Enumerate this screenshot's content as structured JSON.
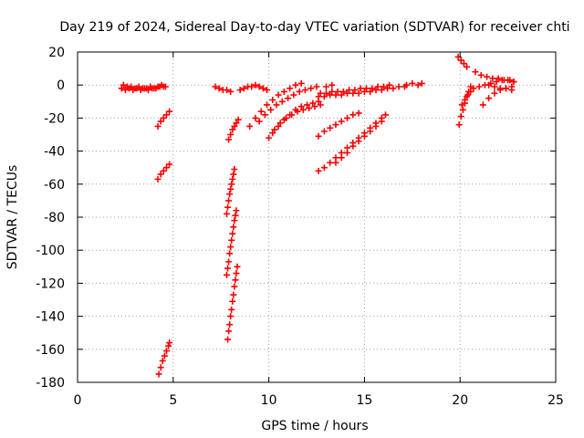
{
  "chart_data": {
    "type": "scatter",
    "title": "Day 219 of 2024, Sidereal Day-to-day VTEC variation (SDTVAR) for receiver chti",
    "xlabel": "GPS time / hours",
    "ylabel": "SDTVAR / TECUs",
    "xlim": [
      0,
      25
    ],
    "ylim": [
      -180,
      20
    ],
    "xticks": [
      0,
      5,
      10,
      15,
      20,
      25
    ],
    "yticks": [
      -180,
      -160,
      -140,
      -120,
      -100,
      -80,
      -60,
      -40,
      -20,
      0,
      20
    ],
    "grid": true,
    "marker": "plus",
    "color": "#ff0000",
    "series": [
      {
        "x": [
          2.3,
          2.5,
          2.7,
          2.9,
          3.1,
          3.3,
          3.5,
          3.7,
          3.9,
          4.1,
          4.3,
          4.5,
          4.6
        ],
        "y": [
          -2,
          -3,
          -2,
          -3,
          -2,
          -3,
          -2,
          -3,
          -2,
          -2,
          -1,
          -1,
          -1
        ]
      },
      {
        "x": [
          2.4,
          2.6,
          2.8,
          3.0,
          3.2,
          3.4,
          3.6,
          3.8,
          4.0,
          4.2,
          4.4
        ],
        "y": [
          0,
          -1,
          -1,
          -2,
          -1,
          -2,
          -2,
          -1,
          -2,
          -1,
          0
        ]
      },
      {
        "x": [
          4.2,
          4.35,
          4.5,
          4.65,
          4.8
        ],
        "y": [
          -25,
          -22,
          -20,
          -18,
          -16
        ]
      },
      {
        "x": [
          4.2,
          4.35,
          4.5,
          4.65,
          4.8
        ],
        "y": [
          -57,
          -54,
          -52,
          -50,
          -48
        ]
      },
      {
        "x": [
          4.25,
          4.35,
          4.45,
          4.55,
          4.65,
          4.75,
          4.8
        ],
        "y": [
          -175,
          -171,
          -167,
          -164,
          -161,
          -158,
          -156
        ]
      },
      {
        "x": [
          7.2,
          7.4,
          7.6,
          7.8,
          8.0
        ],
        "y": [
          -1,
          -2,
          -3,
          -3,
          -4
        ]
      },
      {
        "x": [
          7.9,
          8.0,
          8.1,
          8.2,
          8.3,
          8.4
        ],
        "y": [
          -33,
          -30,
          -27,
          -25,
          -23,
          -21
        ]
      },
      {
        "x": [
          7.8,
          7.85,
          7.9,
          7.95,
          8.0,
          8.05,
          8.1,
          8.15,
          8.2
        ],
        "y": [
          -78,
          -74,
          -70,
          -66,
          -63,
          -60,
          -57,
          -54,
          -51
        ]
      },
      {
        "x": [
          7.8,
          7.85,
          7.9,
          7.95,
          8.0,
          8.05,
          8.1,
          8.15,
          8.2,
          8.25,
          8.3
        ],
        "y": [
          -115,
          -111,
          -107,
          -102,
          -98,
          -94,
          -90,
          -86,
          -82,
          -79,
          -76
        ]
      },
      {
        "x": [
          7.85,
          7.9,
          7.95,
          8.0,
          8.05,
          8.1,
          8.15,
          8.2,
          8.25,
          8.3,
          8.35
        ],
        "y": [
          -154,
          -149,
          -145,
          -140,
          -136,
          -131,
          -127,
          -122,
          -118,
          -114,
          -110
        ]
      },
      {
        "x": [
          8.5,
          8.7,
          8.9,
          9.1,
          9.3,
          9.5,
          9.7,
          9.9
        ],
        "y": [
          -3,
          -2,
          -1,
          -1,
          0,
          -1,
          -2,
          -3
        ]
      },
      {
        "x": [
          9.0,
          9.3,
          9.6,
          9.9,
          10.2,
          10.5,
          10.8,
          11.1,
          11.4,
          11.7
        ],
        "y": [
          -25,
          -20,
          -16,
          -12,
          -9,
          -6,
          -4,
          -2,
          0,
          1
        ]
      },
      {
        "x": [
          9.5,
          9.8,
          10.1,
          10.4,
          10.7,
          11.0,
          11.3,
          11.6,
          11.9,
          12.2,
          12.5
        ],
        "y": [
          -22,
          -18,
          -15,
          -12,
          -10,
          -8,
          -6,
          -4,
          -3,
          -2,
          -1
        ]
      },
      {
        "x": [
          10.0,
          10.3,
          10.6,
          10.9,
          11.2,
          11.5,
          11.8,
          12.1,
          12.4,
          12.7,
          13.0,
          13.3
        ],
        "y": [
          -32,
          -27,
          -23,
          -20,
          -18,
          -16,
          -15,
          -14,
          -13,
          -12,
          -1,
          0
        ]
      },
      {
        "x": [
          10.2,
          10.5,
          10.8,
          11.1,
          11.4,
          11.7,
          12.0,
          12.3,
          12.6
        ],
        "y": [
          -29,
          -25,
          -21,
          -18,
          -15,
          -13,
          -12,
          -11,
          -10
        ]
      },
      {
        "x": [
          12.6,
          12.9,
          13.2,
          13.5,
          13.8,
          14.1,
          14.4,
          14.7,
          15.0,
          15.3,
          15.6,
          15.9,
          16.2,
          16.5,
          16.8,
          17.1
        ],
        "y": [
          -7,
          -7,
          -6,
          -6,
          -6,
          -5,
          -5,
          -5,
          -4,
          -4,
          -3,
          -3,
          -2,
          -2,
          -1,
          -1
        ]
      },
      {
        "x": [
          12.7,
          13.0,
          13.3,
          13.6,
          13.9,
          14.2,
          14.5,
          14.8,
          15.1,
          15.4,
          15.7,
          16.0,
          16.3
        ],
        "y": [
          -5,
          -5,
          -4,
          -4,
          -4,
          -3,
          -3,
          -2,
          -2,
          -2,
          -1,
          -1,
          0
        ]
      },
      {
        "x": [
          17.2,
          17.5,
          17.8,
          18.0
        ],
        "y": [
          0,
          1,
          0,
          1
        ]
      },
      {
        "x": [
          12.6,
          12.9,
          13.2,
          13.5,
          13.8,
          14.1,
          14.4,
          14.7
        ],
        "y": [
          -31,
          -28,
          -26,
          -24,
          -22,
          -20,
          -18,
          -17
        ]
      },
      {
        "x": [
          12.6,
          12.9,
          13.2,
          13.5,
          13.8,
          14.1,
          14.4,
          14.7,
          15.0,
          15.3,
          15.6,
          15.9,
          16.1
        ],
        "y": [
          -52,
          -50,
          -47,
          -44,
          -41,
          -38,
          -35,
          -32,
          -29,
          -26,
          -23,
          -20,
          -18
        ]
      },
      {
        "x": [
          13.5,
          13.8,
          14.1,
          14.4,
          14.7,
          15.0,
          15.3,
          15.6,
          15.9
        ],
        "y": [
          -47,
          -44,
          -41,
          -37,
          -34,
          -31,
          -28,
          -25,
          -22
        ]
      },
      {
        "x": [
          19.9,
          20.05,
          20.2,
          20.35
        ],
        "y": [
          17,
          15,
          13,
          11
        ]
      },
      {
        "x": [
          19.95,
          20.05,
          20.15,
          20.25,
          20.35,
          20.45,
          20.55
        ],
        "y": [
          -24,
          -19,
          -15,
          -11,
          -7,
          -4,
          -1
        ]
      },
      {
        "x": [
          20.1,
          20.25,
          20.4,
          20.55,
          20.7
        ],
        "y": [
          -12,
          -9,
          -6,
          -4,
          -2
        ]
      },
      {
        "x": [
          20.8,
          21.1,
          21.4,
          21.7,
          22.0,
          22.3,
          22.6,
          22.8
        ],
        "y": [
          8,
          6,
          5,
          4,
          4,
          3,
          3,
          2
        ]
      },
      {
        "x": [
          21.0,
          21.3,
          21.6,
          21.9,
          22.2,
          22.5,
          22.8
        ],
        "y": [
          -1,
          0,
          1,
          2,
          3,
          3,
          2
        ]
      },
      {
        "x": [
          21.2,
          21.5,
          21.8,
          22.1,
          22.4,
          22.7
        ],
        "y": [
          -12,
          -8,
          -5,
          -3,
          -2,
          -1
        ]
      },
      {
        "x": [
          21.5,
          21.8,
          22.1,
          22.4,
          22.7
        ],
        "y": [
          0,
          -1,
          -2,
          -2,
          -3
        ]
      }
    ]
  }
}
